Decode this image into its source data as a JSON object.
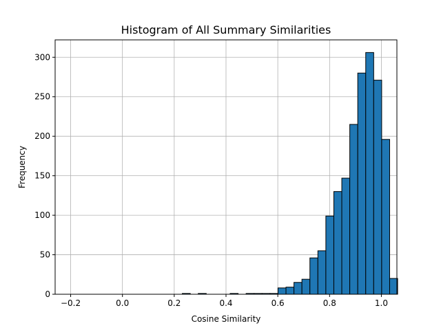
{
  "chart_data": {
    "type": "bar",
    "title": "Histogram of All Summary Similarities",
    "xlabel": "Cosine Similarity",
    "ylabel": "Frequency",
    "xlim": [
      -0.26,
      1.06
    ],
    "ylim": [
      0,
      322
    ],
    "xticks": [
      -0.2,
      0.0,
      0.2,
      0.4,
      0.6,
      0.8,
      1.0
    ],
    "xtick_labels": [
      "−0.2",
      "0.0",
      "0.2",
      "0.4",
      "0.6",
      "0.8",
      "1.0"
    ],
    "yticks": [
      0,
      50,
      100,
      150,
      200,
      250,
      300
    ],
    "ytick_labels": [
      "0",
      "50",
      "100",
      "150",
      "200",
      "250",
      "300"
    ],
    "grid": true,
    "bar_color": "#1f77b4",
    "edge_color": "#000000",
    "bin_start": -0.2,
    "bin_width": 0.0308,
    "values": [
      0,
      0,
      0,
      0,
      0,
      0,
      0,
      0,
      0,
      0,
      0,
      0,
      0,
      0,
      1,
      0,
      1,
      0,
      0,
      0,
      1,
      0,
      1,
      1,
      1,
      1,
      8,
      9,
      15,
      19,
      46,
      55,
      99,
      130,
      147,
      215,
      280,
      306,
      271,
      196,
      20
    ]
  }
}
